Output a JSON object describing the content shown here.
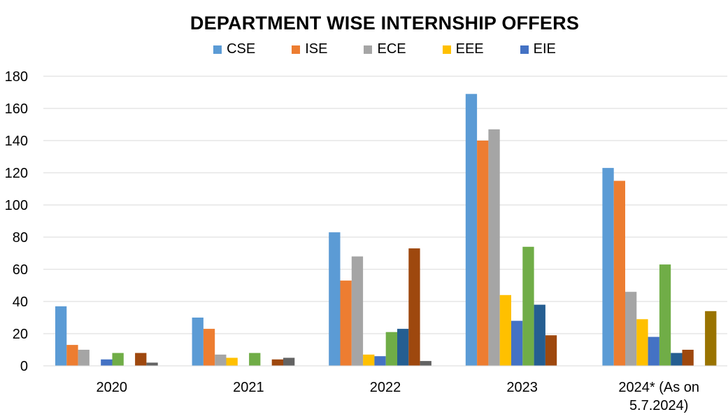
{
  "chart_data": {
    "type": "bar",
    "title": "DEPARTMENT WISE INTERNSHIP OFFERS",
    "xlabel": "",
    "ylabel": "",
    "ylim": [
      0,
      180
    ],
    "yticks": [
      0,
      20,
      40,
      60,
      80,
      100,
      120,
      140,
      160,
      180
    ],
    "grid": true,
    "legend_position": "top",
    "categories": [
      "2020",
      "2021",
      "2022",
      "2023",
      "2024* (As on 5.7.2024)"
    ],
    "category_lines": [
      [
        "2020"
      ],
      [
        "2021"
      ],
      [
        "2022"
      ],
      [
        "2023"
      ],
      [
        "2024* (As on",
        "5.7.2024)"
      ]
    ],
    "series": [
      {
        "name": "CSE",
        "color": "#5B9BD5",
        "values": [
          37,
          30,
          83,
          169,
          123
        ]
      },
      {
        "name": "ISE",
        "color": "#ED7D31",
        "values": [
          13,
          23,
          53,
          140,
          115
        ]
      },
      {
        "name": "ECE",
        "color": "#A5A5A5",
        "values": [
          10,
          7,
          68,
          147,
          46
        ]
      },
      {
        "name": "EEE",
        "color": "#FFC000",
        "values": [
          0,
          5,
          7,
          44,
          29
        ]
      },
      {
        "name": "EIE",
        "color": "#4472C4",
        "values": [
          4,
          0,
          6,
          28,
          18
        ]
      },
      {
        "name": "",
        "color": "#70AD47",
        "values": [
          8,
          8,
          21,
          74,
          63
        ]
      },
      {
        "name": "",
        "color": "#255E91",
        "values": [
          0,
          0,
          23,
          38,
          8
        ]
      },
      {
        "name": "",
        "color": "#9E480E",
        "values": [
          8,
          4,
          73,
          19,
          10
        ]
      },
      {
        "name": "",
        "color": "#636363",
        "values": [
          2,
          5,
          3,
          0,
          0
        ]
      },
      {
        "name": "",
        "color": "#997300",
        "values": [
          0,
          0,
          0,
          0,
          34
        ]
      }
    ]
  }
}
